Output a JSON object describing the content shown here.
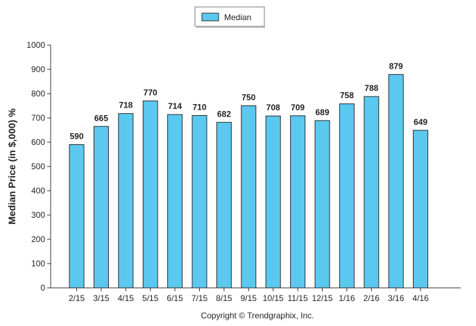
{
  "chart_data": {
    "type": "bar",
    "categories": [
      "2/15",
      "3/15",
      "4/15",
      "5/15",
      "6/15",
      "7/15",
      "8/15",
      "9/15",
      "10/15",
      "11/15",
      "12/15",
      "1/16",
      "2/16",
      "3/16",
      "4/16"
    ],
    "series": [
      {
        "name": "Median",
        "values": [
          590,
          665,
          718,
          770,
          714,
          710,
          682,
          750,
          708,
          709,
          689,
          758,
          788,
          879,
          649
        ]
      }
    ],
    "data_labels": [
      "590",
      "665",
      "718",
      "770",
      "714",
      "710",
      "682",
      "750",
      "708",
      "709",
      "689",
      "758",
      "788",
      "879",
      "649"
    ],
    "title": "",
    "xlabel": "",
    "ylabel": "Median Price (in $,000) %",
    "ylim": [
      0,
      1000
    ],
    "yticks": [
      0,
      100,
      200,
      300,
      400,
      500,
      600,
      700,
      800,
      900,
      1000
    ],
    "ytick_labels": [
      "0",
      "100",
      "200",
      "300",
      "400",
      "500",
      "600",
      "700",
      "800",
      "900",
      "1000"
    ],
    "grid": false,
    "legend_position": "top-center",
    "bar_color": "#5BC8F0",
    "bar_outline_color": "#2A2A2A",
    "annotation": "Copyright © Trendgraphix, Inc."
  }
}
